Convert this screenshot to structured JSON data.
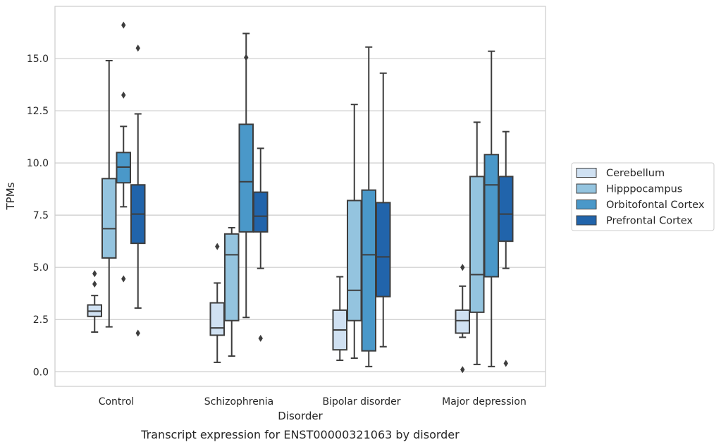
{
  "chart_data": {
    "type": "boxplot",
    "title": "",
    "caption": "Transcript expression for ENST00000321063 by disorder",
    "xlabel": "Disorder",
    "ylabel": "TPMs",
    "ylim": [
      -0.7,
      17.5
    ],
    "yticks": [
      0.0,
      2.5,
      5.0,
      7.5,
      10.0,
      12.5,
      15.0
    ],
    "ytick_labels": [
      "0.0",
      "2.5",
      "5.0",
      "7.5",
      "10.0",
      "12.5",
      "15.0"
    ],
    "grid": "horizontal",
    "legend_position": "right",
    "categories": [
      "Control",
      "Schizophrenia",
      "Bipolar disorder",
      "Major depression"
    ],
    "series": [
      {
        "name": "Cerebellum",
        "color": "#d0e1f2",
        "boxes": [
          {
            "whislo": 1.9,
            "q1": 2.65,
            "med": 2.9,
            "q3": 3.2,
            "whishi": 3.65,
            "fliers": [
              4.2,
              4.7
            ]
          },
          {
            "whislo": 0.45,
            "q1": 1.75,
            "med": 2.1,
            "q3": 3.3,
            "whishi": 4.25,
            "fliers": [
              6.0
            ]
          },
          {
            "whislo": 0.55,
            "q1": 1.05,
            "med": 2.0,
            "q3": 2.95,
            "whishi": 4.55,
            "fliers": []
          },
          {
            "whislo": 1.65,
            "q1": 1.85,
            "med": 2.45,
            "q3": 2.95,
            "whishi": 4.1,
            "fliers": [
              0.1,
              5.0
            ]
          }
        ]
      },
      {
        "name": "Hipppocampus",
        "color": "#94c4df",
        "boxes": [
          {
            "whislo": 2.15,
            "q1": 5.45,
            "med": 6.85,
            "q3": 9.25,
            "whishi": 14.9,
            "fliers": []
          },
          {
            "whislo": 0.75,
            "q1": 2.45,
            "med": 5.6,
            "q3": 6.6,
            "whishi": 6.9,
            "fliers": []
          },
          {
            "whislo": 0.65,
            "q1": 2.45,
            "med": 3.9,
            "q3": 8.2,
            "whishi": 12.8,
            "fliers": []
          },
          {
            "whislo": 0.35,
            "q1": 2.85,
            "med": 4.65,
            "q3": 9.35,
            "whishi": 11.95,
            "fliers": []
          }
        ]
      },
      {
        "name": "Orbitofontal Cortex",
        "color": "#4a98c9",
        "boxes": [
          {
            "whislo": 7.9,
            "q1": 9.05,
            "med": 9.8,
            "q3": 10.5,
            "whishi": 11.75,
            "fliers": [
              4.45,
              13.25,
              16.6
            ]
          },
          {
            "whislo": 2.6,
            "q1": 6.7,
            "med": 9.1,
            "q3": 11.85,
            "whishi": 16.2,
            "fliers": [
              15.05
            ]
          },
          {
            "whislo": 0.25,
            "q1": 1.0,
            "med": 5.6,
            "q3": 8.7,
            "whishi": 15.55,
            "fliers": []
          },
          {
            "whislo": 0.25,
            "q1": 4.55,
            "med": 8.95,
            "q3": 10.4,
            "whishi": 15.35,
            "fliers": []
          }
        ]
      },
      {
        "name": "Prefrontal Cortex",
        "color": "#2164ab",
        "boxes": [
          {
            "whislo": 3.05,
            "q1": 6.15,
            "med": 7.55,
            "q3": 8.95,
            "whishi": 12.35,
            "fliers": [
              1.85,
              15.5
            ]
          },
          {
            "whislo": 4.95,
            "q1": 6.7,
            "med": 7.45,
            "q3": 8.6,
            "whishi": 10.7,
            "fliers": [
              1.6
            ]
          },
          {
            "whislo": 1.2,
            "q1": 3.6,
            "med": 5.5,
            "q3": 8.1,
            "whishi": 14.3,
            "fliers": []
          },
          {
            "whislo": 4.95,
            "q1": 6.25,
            "med": 7.55,
            "q3": 9.35,
            "whishi": 11.5,
            "fliers": [
              0.4
            ]
          }
        ]
      }
    ]
  }
}
